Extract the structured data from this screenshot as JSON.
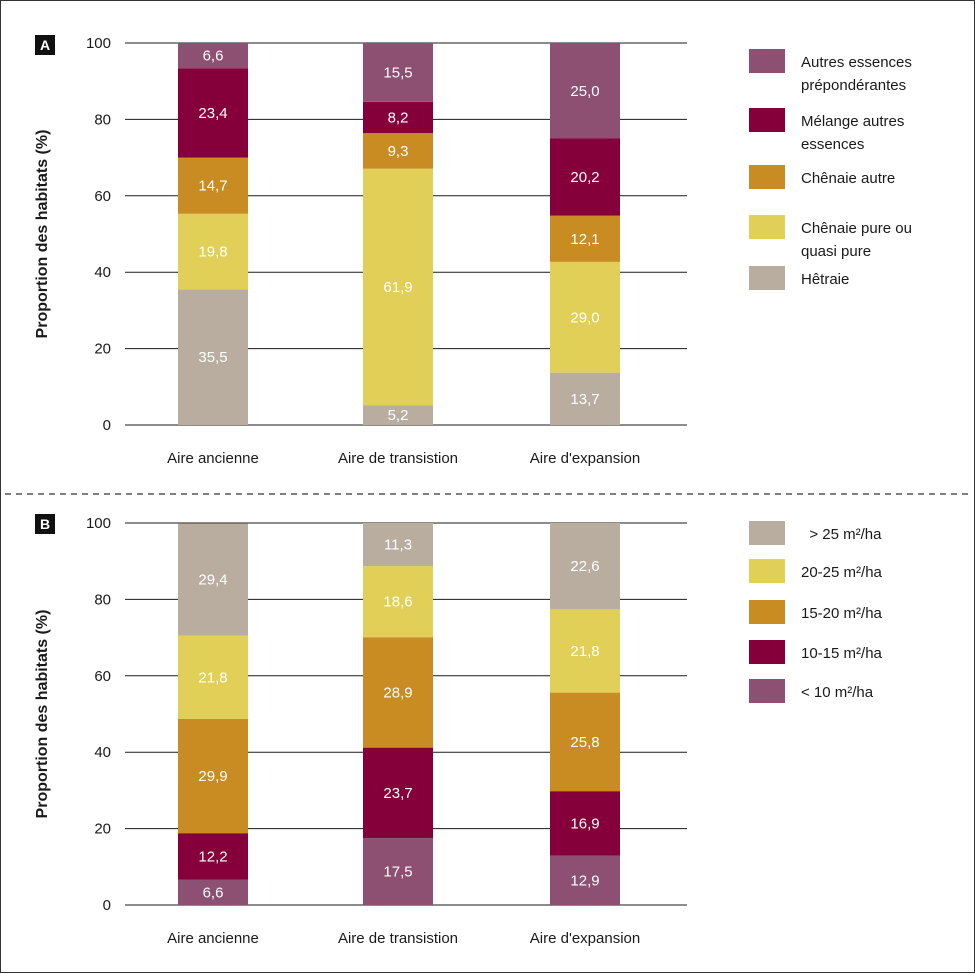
{
  "chart_data": [
    {
      "type": "bar",
      "stacked": true,
      "panel_label": "A",
      "ylabel": "Proportion des habitats (%)",
      "ylim": [
        0,
        100
      ],
      "yticks": [
        0,
        20,
        40,
        60,
        80,
        100
      ],
      "grid": true,
      "legend_position": "right",
      "categories": [
        "Aire ancienne",
        "Aire de transistion",
        "Aire d'expansion"
      ],
      "series": [
        {
          "name": "Hêtraie",
          "color": "#b9ada0",
          "values": [
            35.5,
            5.2,
            13.7
          ],
          "labels": [
            "35,5",
            "5,2",
            "13,7"
          ]
        },
        {
          "name": "Chênaie pure ou quasi pure",
          "color": "#e2cf58",
          "values": [
            19.8,
            61.9,
            29.0
          ],
          "labels": [
            "19,8",
            "61,9",
            "29,0"
          ]
        },
        {
          "name": "Chênaie autre",
          "color": "#c98c22",
          "values": [
            14.7,
            9.3,
            12.1
          ],
          "labels": [
            "14,7",
            "9,3",
            "12,1"
          ]
        },
        {
          "name": "Mélange autres essences",
          "color": "#85003a",
          "values": [
            23.4,
            8.2,
            20.2
          ],
          "labels": [
            "23,4",
            "8,2",
            "20,2"
          ]
        },
        {
          "name": "Autres essences prépondérantes",
          "color": "#8d4f72",
          "values": [
            6.6,
            15.5,
            25.0
          ],
          "labels": [
            "6,6",
            "15,5",
            "25,0"
          ]
        }
      ],
      "legend": [
        {
          "lines": [
            "Autres essences",
            "prépondérantes"
          ],
          "color": "#8d4f72"
        },
        {
          "lines": [
            "Mélange autres",
            "essences"
          ],
          "color": "#85003a"
        },
        {
          "lines": [
            "Chênaie autre"
          ],
          "color": "#c98c22"
        },
        {
          "lines": [
            "Chênaie pure ou",
            "quasi pure"
          ],
          "color": "#e2cf58"
        },
        {
          "lines": [
            "Hêtraie"
          ],
          "color": "#b9ada0"
        }
      ]
    },
    {
      "type": "bar",
      "stacked": true,
      "panel_label": "B",
      "ylabel": "Proportion des habitats (%)",
      "ylim": [
        0,
        100
      ],
      "yticks": [
        0,
        20,
        40,
        60,
        80,
        100
      ],
      "grid": true,
      "legend_position": "right",
      "categories": [
        "Aire ancienne",
        "Aire de transistion",
        "Aire d'expansion"
      ],
      "series": [
        {
          "name": "< 10 m²/ha",
          "color": "#8d4f72",
          "values": [
            6.6,
            17.5,
            12.9
          ],
          "labels": [
            "6,6",
            "17,5",
            "12,9"
          ]
        },
        {
          "name": "10-15 m²/ha",
          "color": "#85003a",
          "values": [
            12.2,
            23.7,
            16.9
          ],
          "labels": [
            "12,2",
            "23,7",
            "16,9"
          ]
        },
        {
          "name": "15-20 m²/ha",
          "color": "#c98c22",
          "values": [
            29.9,
            28.9,
            25.8
          ],
          "labels": [
            "29,9",
            "28,9",
            "25,8"
          ]
        },
        {
          "name": "20-25 m²/ha",
          "color": "#e2cf58",
          "values": [
            21.8,
            18.6,
            21.8
          ],
          "labels": [
            "21,8",
            "18,6",
            "21,8"
          ]
        },
        {
          "name": "> 25 m²/ha",
          "color": "#b9ada0",
          "values": [
            29.4,
            11.3,
            22.6
          ],
          "labels": [
            "29,4",
            "11,3",
            "22,6"
          ]
        }
      ],
      "legend": [
        {
          "lines": [
            "  > 25 m²/ha"
          ],
          "color": "#b9ada0"
        },
        {
          "lines": [
            "20-25 m²/ha"
          ],
          "color": "#e2cf58"
        },
        {
          "lines": [
            "15-20 m²/ha"
          ],
          "color": "#c98c22"
        },
        {
          "lines": [
            "10-15 m²/ha"
          ],
          "color": "#85003a"
        },
        {
          "lines": [
            "< 10 m²/ha"
          ],
          "color": "#8d4f72"
        }
      ]
    }
  ]
}
